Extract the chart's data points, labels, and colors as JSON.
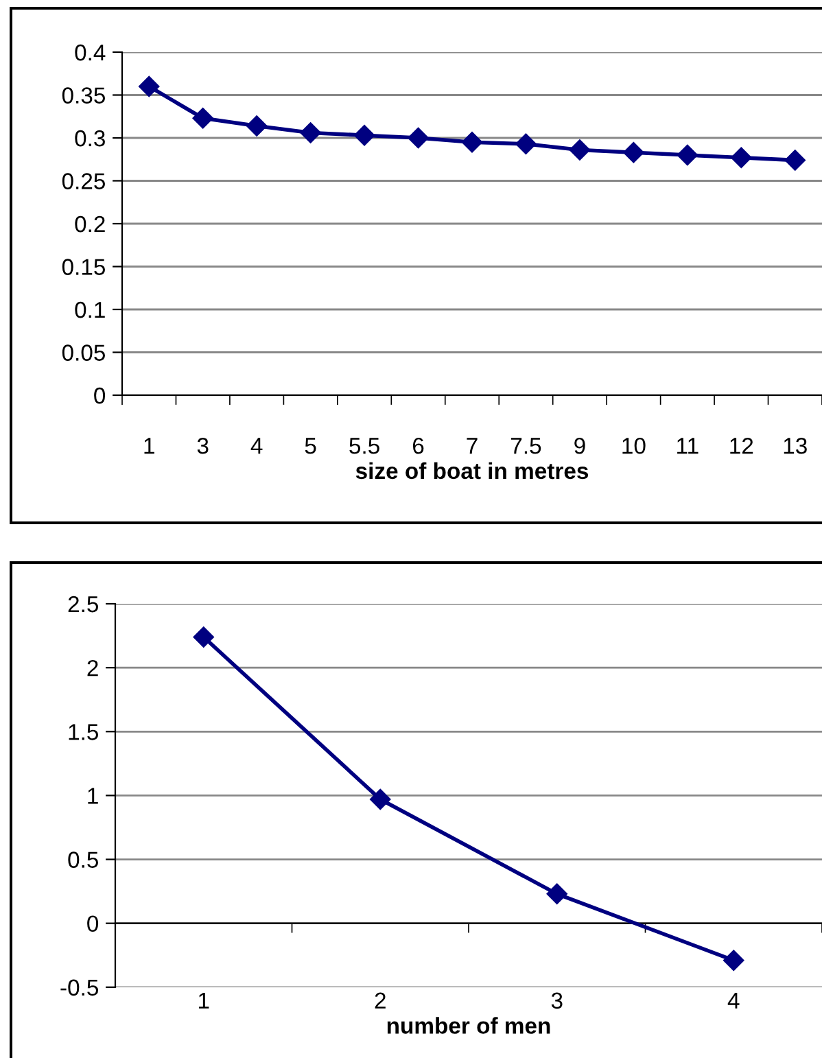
{
  "chart_data": [
    {
      "type": "line",
      "categories": [
        "1",
        "3",
        "4",
        "5",
        "5.5",
        "6",
        "7",
        "7.5",
        "9",
        "10",
        "11",
        "12",
        "13"
      ],
      "xlabel": "size of boat in metres",
      "series": [
        {
          "color": "#000080",
          "values": [
            0.36,
            0.323,
            0.314,
            0.306,
            0.303,
            0.3,
            0.295,
            0.293,
            0.286,
            0.283,
            0.28,
            0.277,
            0.274
          ]
        }
      ],
      "ylim": [
        0,
        0.4
      ],
      "yticks": [
        0,
        0.05,
        0.1,
        0.15,
        0.2,
        0.25,
        0.3,
        0.35,
        0.4
      ],
      "grid": "y",
      "marker": "diamond",
      "line_style": "solid"
    },
    {
      "type": "line",
      "categories": [
        "1",
        "2",
        "3",
        "4"
      ],
      "xlabel": "number of men",
      "series": [
        {
          "color": "#000080",
          "values": [
            2.24,
            0.97,
            0.23,
            -0.29
          ]
        }
      ],
      "ylim": [
        -0.5,
        2.5
      ],
      "yticks": [
        -0.5,
        0,
        0.5,
        1,
        1.5,
        2,
        2.5
      ],
      "grid": "y",
      "marker": "diamond",
      "line_style": "solid"
    }
  ]
}
